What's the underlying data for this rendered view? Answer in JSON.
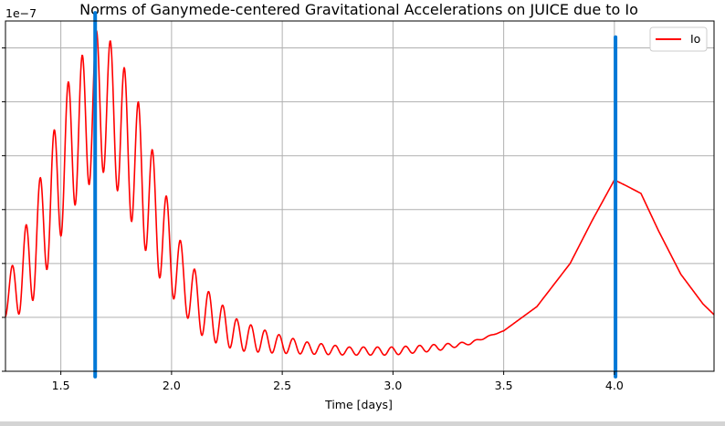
{
  "chart_data": {
    "type": "line",
    "title": "Norms of Ganymede-centered Gravitational Accelerations on JUICE due to Io",
    "xlabel": "Time [days]",
    "ylabel": "",
    "y_offset_label": "1e−7",
    "xlim": [
      1.25,
      4.45
    ],
    "ylim": [
      0.0,
      6.5
    ],
    "x_ticks": [
      1.5,
      2.0,
      2.5,
      3.0,
      3.5,
      4.0
    ],
    "x_tick_labels": [
      "1.5",
      "2.0",
      "2.5",
      "3.0",
      "3.5",
      "4.0"
    ],
    "y_ticks": [
      0,
      1,
      2,
      3,
      4,
      5,
      6
    ],
    "y_tick_labels": [
      "",
      "",
      "",
      "",
      "",
      "",
      ""
    ],
    "grid": true,
    "legend": "top-right",
    "series": [
      {
        "name": "Io",
        "color": "#ff0000",
        "envelope_x": [
          1.25,
          1.35,
          1.45,
          1.55,
          1.62,
          1.67,
          1.75,
          1.85,
          1.95,
          2.05,
          2.15,
          2.3,
          2.45,
          2.6,
          2.8,
          3.0,
          3.2,
          3.35,
          3.5,
          3.65,
          3.8,
          3.9,
          4.0,
          4.05,
          4.12,
          4.2,
          4.3,
          4.4,
          4.45
        ],
        "upper": [
          1.6,
          2.8,
          4.2,
          5.6,
          6.0,
          6.4,
          6.0,
          5.0,
          3.6,
          2.3,
          1.55,
          0.95,
          0.72,
          0.55,
          0.45,
          0.45,
          0.5,
          0.55,
          0.75,
          1.2,
          2.0,
          2.8,
          3.55,
          3.45,
          3.3,
          2.6,
          1.8,
          1.25,
          1.05
        ],
        "lower": [
          1.0,
          1.1,
          2.0,
          3.0,
          3.4,
          3.8,
          3.4,
          2.5,
          1.7,
          1.1,
          0.6,
          0.38,
          0.34,
          0.32,
          0.3,
          0.3,
          0.38,
          0.5,
          0.75,
          1.2,
          2.0,
          2.8,
          3.55,
          3.45,
          3.3,
          2.6,
          1.8,
          1.25,
          1.05
        ],
        "oscillation_period_days": 0.0635
      }
    ],
    "markers": [
      {
        "x": 1.655,
        "y_bottom": -0.1,
        "y_top": 6.65,
        "color": "#0078d7"
      },
      {
        "x": 4.005,
        "y_bottom": -0.1,
        "y_top": 6.2,
        "color": "#0078d7"
      }
    ]
  }
}
